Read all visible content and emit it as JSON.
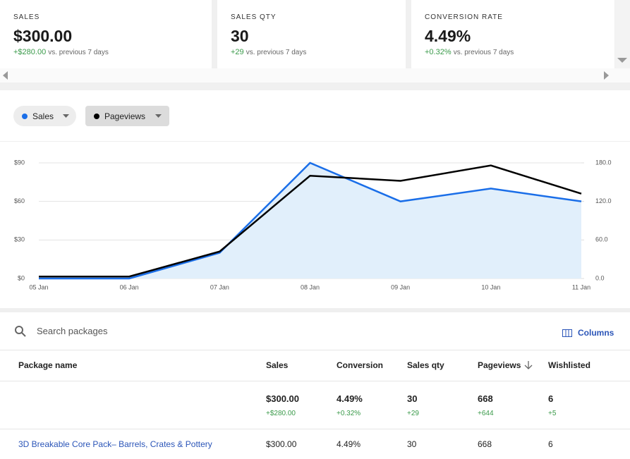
{
  "cards": [
    {
      "label": "SALES",
      "value": "$300.00",
      "change": "+$280.00",
      "note": "vs. previous 7 days"
    },
    {
      "label": "SALES QTY",
      "value": "30",
      "change": "+29",
      "note": "vs. previous 7 days"
    },
    {
      "label": "CONVERSION RATE",
      "value": "4.49%",
      "change": "+0.32%",
      "note": "vs. previous 7 days"
    }
  ],
  "chart_data": {
    "type": "line",
    "x": [
      "05 Jan",
      "06 Jan",
      "07 Jan",
      "08 Jan",
      "09 Jan",
      "10 Jan",
      "11 Jan"
    ],
    "series": [
      {
        "name": "Sales",
        "color": "#1a6ee8",
        "values": [
          0,
          0,
          20,
          90,
          60,
          70,
          60
        ],
        "area_color": "#e1effb"
      },
      {
        "name": "Pageviews",
        "color": "#000000",
        "axis": "y2",
        "values": [
          3,
          3,
          42,
          160,
          152,
          176,
          132
        ]
      }
    ],
    "ylim": [
      0,
      90
    ],
    "yticks": [
      {
        "value": 0,
        "label": "$0"
      },
      {
        "value": 30,
        "label": "$30"
      },
      {
        "value": 60,
        "label": "$60"
      },
      {
        "value": 90,
        "label": "$90"
      }
    ],
    "y2lim": [
      0,
      180
    ],
    "y2ticks": [
      {
        "value": 0,
        "label": "0.0"
      },
      {
        "value": 60,
        "label": "60.0"
      },
      {
        "value": 120,
        "label": "120.0"
      },
      {
        "value": 180,
        "label": "180.0"
      }
    ],
    "grid": true
  },
  "search": {
    "placeholder": "Search packages",
    "columns_button": "Columns"
  },
  "table": {
    "headers": [
      "Package name",
      "Sales",
      "Conversion",
      "Sales qty",
      "Pageviews",
      "Wishlisted"
    ],
    "totals": [
      {
        "value": "$300.00",
        "change": "+$280.00"
      },
      {
        "value": "4.49%",
        "change": "+0.32%"
      },
      {
        "value": "30",
        "change": "+29"
      },
      {
        "value": "668",
        "change": "+644"
      },
      {
        "value": "6",
        "change": "+5"
      }
    ],
    "rows": [
      [
        "3D Breakable Core Pack– Barrels, Crates & Pottery",
        "$300.00",
        "4.49%",
        "30",
        "668",
        "6"
      ]
    ]
  }
}
